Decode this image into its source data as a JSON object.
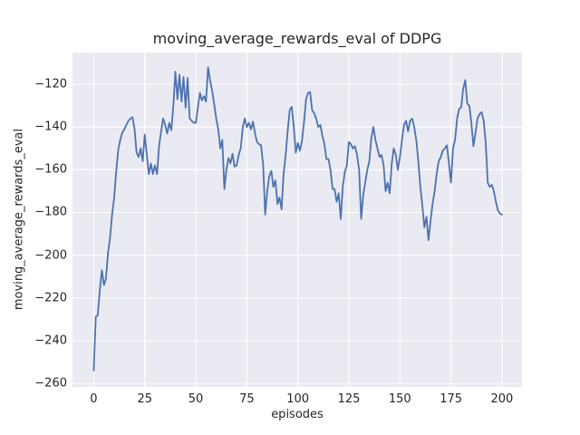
{
  "chart_data": {
    "type": "line",
    "title": "moving_average_rewards_eval of DDPG",
    "xlabel": "episodes",
    "ylabel": "moving_average_rewards_eval",
    "x_start": 0,
    "x_step": 1,
    "y": [
      -254,
      -229,
      -228,
      -216,
      -207,
      -214,
      -211,
      -199,
      -192,
      -181,
      -173,
      -161,
      -150.5,
      -146,
      -142.5,
      -141,
      -139,
      -137,
      -136,
      -135.3,
      -141,
      -152,
      -154,
      -150,
      -156,
      -143.5,
      -153,
      -162,
      -157,
      -162,
      -158,
      -162,
      -149,
      -142,
      -136,
      -139,
      -143,
      -138,
      -141.5,
      -130,
      -114,
      -127,
      -115.5,
      -128,
      -116.5,
      -131,
      -117,
      -136,
      -137,
      -138,
      -138,
      -131,
      -124,
      -127.5,
      -125.5,
      -128,
      -112,
      -118,
      -123,
      -129,
      -136,
      -141,
      -150,
      -146,
      -169,
      -160,
      -154.5,
      -157,
      -152.5,
      -158.5,
      -158,
      -153,
      -150,
      -140,
      -136,
      -140,
      -138,
      -141,
      -137.5,
      -143,
      -147,
      -148,
      -148.5,
      -158,
      -181,
      -170,
      -163,
      -160.5,
      -168,
      -165,
      -176,
      -173,
      -178.5,
      -162,
      -153,
      -142,
      -132,
      -130.5,
      -140,
      -152,
      -147.5,
      -151,
      -146.5,
      -138,
      -127,
      -124,
      -123.5,
      -132,
      -133.5,
      -136,
      -140,
      -139,
      -144,
      -148,
      -155,
      -155,
      -160,
      -169,
      -169,
      -175,
      -171,
      -183,
      -168,
      -161,
      -158,
      -147,
      -148,
      -150,
      -149,
      -153,
      -160,
      -183,
      -172,
      -166,
      -160,
      -156,
      -145,
      -140,
      -146,
      -150,
      -154,
      -153,
      -158,
      -170,
      -166,
      -171,
      -157,
      -150,
      -153,
      -160,
      -154,
      -146,
      -139,
      -137,
      -142,
      -137,
      -136,
      -140,
      -146,
      -156,
      -168,
      -177,
      -187,
      -182,
      -193,
      -184,
      -176,
      -170,
      -162,
      -156,
      -154,
      -151,
      -150,
      -148.5,
      -157,
      -166,
      -150,
      -146,
      -136,
      -131.5,
      -130.8,
      -122,
      -118,
      -129,
      -130,
      -138,
      -149,
      -143,
      -136,
      -134,
      -133,
      -137,
      -147,
      -166,
      -168,
      -167,
      -170,
      -175,
      -179,
      -180.5,
      -181
    ],
    "xlim": [
      -10.4,
      209.8
    ],
    "ylim": [
      -261.7,
      -105.1
    ],
    "xtick_values": [
      0,
      25,
      50,
      75,
      100,
      125,
      150,
      175,
      200
    ],
    "xtick_labels": [
      "0",
      "25",
      "50",
      "75",
      "100",
      "125",
      "150",
      "175",
      "200"
    ],
    "ytick_values": [
      -120,
      -140,
      -160,
      -180,
      -200,
      -220,
      -240,
      -260
    ],
    "ytick_labels": [
      "−120",
      "−140",
      "−160",
      "−180",
      "−200",
      "−220",
      "−240",
      "−260"
    ],
    "grid": true,
    "legend": null,
    "line_color": "#4C72B0",
    "plot_bg_color": "#EAEAF2",
    "grid_color": "#FFFFFF",
    "figure_bg_color": "#FFFFFF",
    "text_color": "#262626"
  }
}
